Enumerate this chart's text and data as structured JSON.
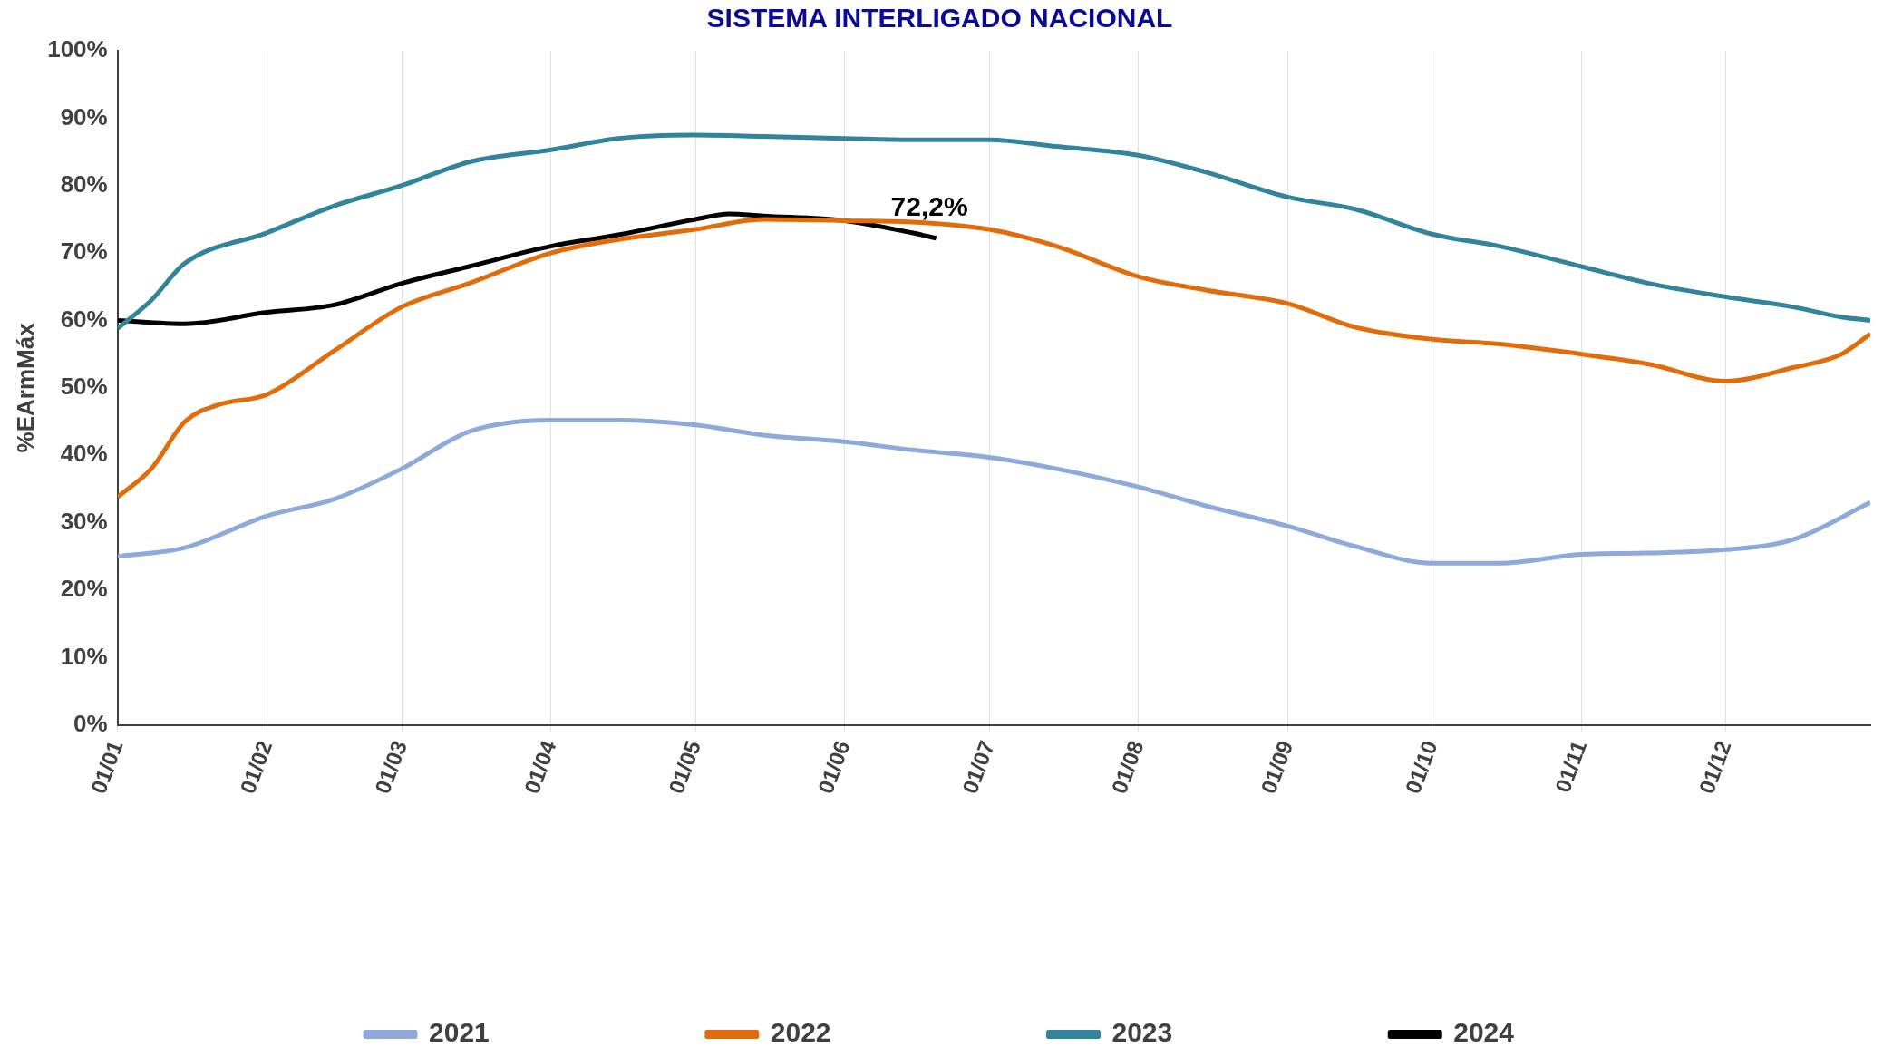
{
  "chart_data": {
    "type": "line",
    "title": "SISTEMA INTERLIGADO NACIONAL",
    "ylabel": "%EArmMáx",
    "xlim": [
      "--01-01",
      "--12-31"
    ],
    "xticks": [
      {
        "value": "--01-01",
        "label": "01/01"
      },
      {
        "value": "--02-01",
        "label": "01/02"
      },
      {
        "value": "--03-01",
        "label": "01/03"
      },
      {
        "value": "--04-01",
        "label": "01/04"
      },
      {
        "value": "--05-01",
        "label": "01/05"
      },
      {
        "value": "--06-01",
        "label": "01/06"
      },
      {
        "value": "--07-01",
        "label": "01/07"
      },
      {
        "value": "--08-01",
        "label": "01/08"
      },
      {
        "value": "--09-01",
        "label": "01/09"
      },
      {
        "value": "--10-01",
        "label": "01/10"
      },
      {
        "value": "--11-01",
        "label": "01/11"
      },
      {
        "value": "--12-01",
        "label": "01/12"
      }
    ],
    "ylim": [
      0,
      100
    ],
    "yticks": [
      {
        "value": 0,
        "label": "0%"
      },
      {
        "value": 10,
        "label": "10%"
      },
      {
        "value": 20,
        "label": "20%"
      },
      {
        "value": 30,
        "label": "30%"
      },
      {
        "value": 40,
        "label": "40%"
      },
      {
        "value": 50,
        "label": "50%"
      },
      {
        "value": 60,
        "label": "60%"
      },
      {
        "value": 70,
        "label": "70%"
      },
      {
        "value": 80,
        "label": "80%"
      },
      {
        "value": 90,
        "label": "90%"
      },
      {
        "value": 100,
        "label": "100%"
      }
    ],
    "grid": "x",
    "legend": "bottom",
    "annotations": [
      {
        "text": "72,2%",
        "x": "--06-20",
        "y": 72.2
      }
    ],
    "series": [
      {
        "name": "2021",
        "color": "#8eaadb",
        "x": [
          "--01-01",
          "--01-15",
          "--02-01",
          "--02-15",
          "--03-01",
          "--03-15",
          "--04-01",
          "--04-15",
          "--05-01",
          "--05-15",
          "--06-01",
          "--06-15",
          "--07-01",
          "--07-15",
          "--08-01",
          "--08-15",
          "--09-01",
          "--09-15",
          "--10-01",
          "--10-15",
          "--11-01",
          "--11-15",
          "--12-01",
          "--12-15",
          "--12-31"
        ],
        "values": [
          25,
          26.3,
          31,
          33.5,
          38,
          43.5,
          45.2,
          45.2,
          44.5,
          43,
          42,
          40.8,
          39.7,
          38,
          35.3,
          32.5,
          29.5,
          26.5,
          24,
          24,
          25.3,
          25.5,
          26,
          27.5,
          33
        ]
      },
      {
        "name": "2022",
        "color": "#e36c0a",
        "x": [
          "--01-01",
          "--01-08",
          "--01-15",
          "--01-22",
          "--02-01",
          "--02-15",
          "--03-01",
          "--03-15",
          "--04-01",
          "--04-15",
          "--05-01",
          "--05-15",
          "--06-01",
          "--06-15",
          "--07-01",
          "--07-15",
          "--08-01",
          "--08-15",
          "--09-01",
          "--09-15",
          "--10-01",
          "--10-15",
          "--11-01",
          "--11-15",
          "--12-01",
          "--12-15",
          "--12-25",
          "--12-31"
        ],
        "values": [
          33.8,
          38,
          45,
          47.5,
          49,
          55.5,
          62,
          65.5,
          70,
          72,
          73.5,
          75,
          74.8,
          74.6,
          73.5,
          71,
          66.5,
          64.5,
          62.5,
          59,
          57.2,
          56.5,
          55,
          53.5,
          51,
          53,
          55,
          58
        ]
      },
      {
        "name": "2023",
        "color": "#31849b",
        "x": [
          "--01-01",
          "--01-08",
          "--01-15",
          "--02-01",
          "--02-15",
          "--03-01",
          "--03-15",
          "--04-01",
          "--04-15",
          "--05-01",
          "--05-15",
          "--06-01",
          "--06-15",
          "--07-01",
          "--07-15",
          "--08-01",
          "--08-15",
          "--09-01",
          "--09-15",
          "--10-01",
          "--10-15",
          "--11-01",
          "--11-15",
          "--12-01",
          "--12-15",
          "--12-25",
          "--12-31"
        ],
        "values": [
          58.8,
          63,
          68.5,
          73,
          77,
          80,
          83.5,
          85.3,
          87,
          87.5,
          87.3,
          87,
          86.8,
          86.8,
          85.8,
          84.5,
          82,
          78.3,
          76.5,
          72.8,
          71,
          68,
          65.5,
          63.5,
          62,
          60.5,
          60
        ]
      },
      {
        "name": "2024",
        "color": "#000000",
        "x": [
          "--01-01",
          "--01-15",
          "--02-01",
          "--02-15",
          "--03-01",
          "--03-15",
          "--04-01",
          "--04-15",
          "--05-01",
          "--05-08",
          "--05-15",
          "--06-01",
          "--06-15",
          "--06-20"
        ],
        "values": [
          60,
          59.5,
          61.2,
          62.3,
          65.5,
          68,
          71,
          72.7,
          75,
          75.8,
          75.5,
          74.8,
          73,
          72.2
        ]
      }
    ]
  }
}
